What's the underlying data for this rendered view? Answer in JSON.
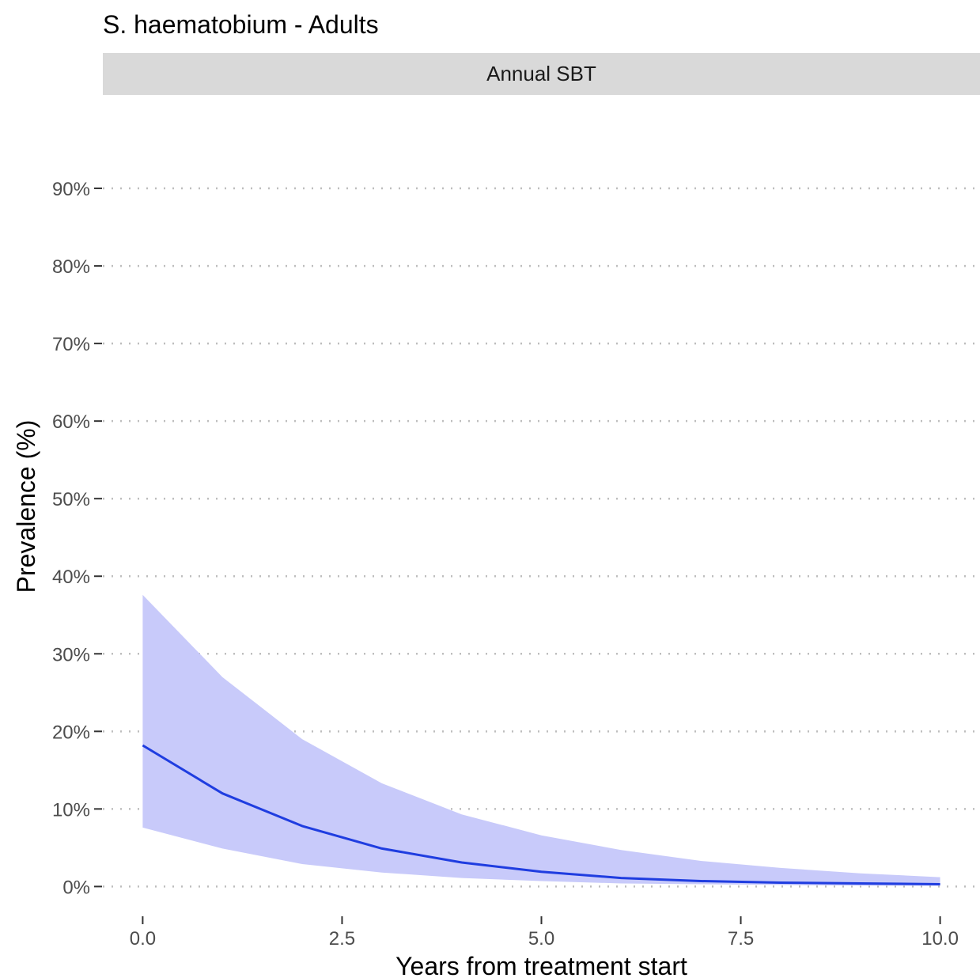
{
  "chart_data": {
    "type": "line",
    "title": "S. haematobium - Adults",
    "facet_label": "Annual SBT",
    "xlabel": "Years from treatment start",
    "ylabel": "Prevalence (%)",
    "xlim": [
      -0.5,
      10.5
    ],
    "ylim": [
      -2,
      100
    ],
    "x_ticks": [
      0,
      2.5,
      5,
      7.5,
      10
    ],
    "x_tick_labels": [
      "0.0",
      "2.5",
      "5.0",
      "7.5",
      "10.0"
    ],
    "y_ticks": [
      0,
      10,
      20,
      30,
      40,
      50,
      60,
      70,
      80,
      90
    ],
    "y_tick_labels": [
      "0%",
      "10%",
      "20%",
      "30%",
      "40%",
      "50%",
      "60%",
      "70%",
      "80%",
      "90%"
    ],
    "grid": "horizontal dotted",
    "series": [
      {
        "x": [
          0,
          1,
          2,
          3,
          4,
          5,
          6,
          7,
          8,
          9,
          10
        ],
        "values": [
          18.2,
          12.0,
          7.8,
          4.9,
          3.1,
          1.9,
          1.1,
          0.7,
          0.5,
          0.4,
          0.3
        ],
        "lower": [
          7.6,
          4.9,
          2.9,
          1.8,
          1.1,
          0.7,
          0.4,
          0.3,
          0.2,
          0.1,
          0.1
        ],
        "upper": [
          37.6,
          27.0,
          19.0,
          13.3,
          9.3,
          6.6,
          4.7,
          3.3,
          2.4,
          1.7,
          1.2
        ]
      }
    ],
    "colors": {
      "line": "#1f3de0",
      "ribbon": "#c8cafa",
      "grid": "#bdbdbd",
      "strip": "#d9d9d9",
      "tick": "#333333"
    }
  }
}
